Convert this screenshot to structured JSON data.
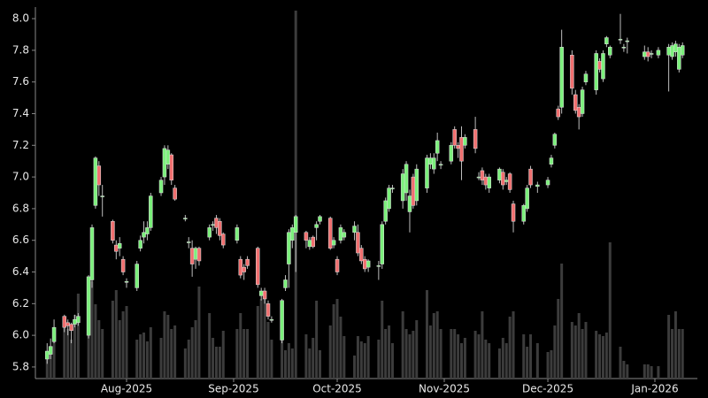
{
  "chart_data": {
    "type": "candlestick",
    "x": [
      8,
      9,
      10,
      13,
      14,
      15,
      16,
      17,
      20,
      21,
      22,
      23,
      24,
      27,
      28,
      29,
      30,
      31,
      34,
      35,
      36,
      37,
      38,
      41,
      42,
      43,
      44,
      45,
      48,
      49,
      50,
      51,
      52,
      55,
      56,
      57,
      58,
      59,
      63,
      64,
      65,
      66,
      69,
      70,
      71,
      72,
      73,
      76,
      77,
      78,
      79,
      80,
      83,
      84,
      85,
      86,
      87,
      90,
      91,
      92,
      93,
      94,
      97,
      98,
      99,
      100,
      101,
      104,
      105,
      106,
      107,
      108,
      111,
      112,
      113,
      114,
      115,
      118,
      119,
      120,
      121,
      122,
      125,
      126,
      127,
      128,
      129,
      132,
      133,
      134,
      135,
      136,
      139,
      140,
      141,
      142,
      143,
      146,
      147,
      148,
      150,
      153,
      154,
      155,
      156,
      157,
      160,
      161,
      162,
      163,
      164,
      167,
      168,
      169,
      170,
      171,
      174,
      175,
      176,
      181,
      182,
      183,
      185,
      188,
      189,
      190,
      191,
      192
    ],
    "open": [
      5.85,
      5.88,
      5.96,
      6.12,
      6.08,
      6.07,
      6.07,
      6.08,
      6.0,
      6.35,
      6.82,
      7.07,
      6.88,
      6.72,
      6.57,
      6.55,
      6.48,
      6.34,
      6.3,
      6.55,
      6.62,
      6.64,
      6.68,
      6.9,
      7.0,
      7.08,
      7.14,
      6.93,
      6.74,
      6.59,
      6.55,
      6.48,
      6.55,
      6.62,
      6.7,
      6.74,
      6.72,
      6.64,
      6.6,
      6.48,
      6.43,
      6.48,
      6.55,
      6.25,
      6.28,
      6.2,
      6.1,
      5.97,
      6.3,
      6.45,
      6.6,
      6.65,
      6.65,
      6.56,
      6.62,
      6.68,
      6.72,
      6.74,
      6.57,
      6.48,
      6.6,
      6.62,
      6.65,
      6.65,
      6.55,
      6.48,
      6.43,
      6.44,
      6.45,
      6.72,
      6.8,
      6.93,
      6.85,
      6.9,
      6.78,
      7.0,
      6.85,
      6.93,
      7.08,
      7.05,
      7.15,
      7.08,
      7.1,
      7.3,
      7.2,
      7.25,
      7.2,
      7.3,
      7.0,
      7.04,
      7.0,
      6.93,
      6.98,
      7.03,
      6.97,
      7.02,
      6.83,
      6.72,
      6.8,
      7.05,
      6.94,
      6.95,
      7.08,
      7.2,
      7.43,
      7.44,
      7.77,
      7.52,
      7.44,
      7.4,
      7.6,
      7.55,
      7.73,
      7.62,
      7.84,
      7.77,
      7.87,
      7.82,
      7.86,
      7.76,
      7.79,
      7.78,
      7.77,
      7.77,
      7.76,
      7.79,
      7.68,
      7.77
    ],
    "high": [
      5.95,
      5.98,
      6.1,
      6.13,
      6.1,
      6.08,
      6.13,
      6.14,
      6.38,
      6.7,
      7.13,
      7.1,
      6.95,
      6.73,
      6.6,
      6.62,
      6.5,
      6.36,
      6.47,
      6.63,
      6.72,
      6.72,
      6.9,
      7.0,
      7.2,
      7.2,
      7.15,
      6.95,
      6.76,
      6.62,
      6.6,
      6.56,
      6.56,
      6.7,
      6.72,
      6.76,
      6.74,
      6.65,
      6.7,
      6.5,
      6.45,
      6.5,
      6.56,
      6.3,
      6.3,
      6.22,
      6.12,
      6.23,
      6.38,
      6.67,
      6.7,
      6.76,
      6.66,
      6.62,
      6.63,
      6.72,
      6.76,
      6.75,
      6.62,
      6.5,
      6.7,
      6.67,
      6.72,
      6.7,
      6.57,
      6.5,
      6.48,
      6.47,
      6.72,
      6.87,
      6.95,
      6.95,
      7.05,
      7.1,
      6.92,
      7.02,
      7.08,
      7.14,
      7.15,
      7.15,
      7.28,
      7.1,
      7.22,
      7.32,
      7.22,
      7.32,
      7.27,
      7.38,
      7.03,
      7.06,
      7.02,
      7.02,
      7.06,
      7.05,
      7.0,
      7.03,
      6.85,
      6.83,
      6.95,
      7.07,
      6.97,
      7.0,
      7.14,
      7.28,
      7.45,
      7.93,
      7.8,
      7.55,
      7.46,
      7.57,
      7.67,
      7.8,
      7.75,
      7.8,
      7.89,
      7.83,
      8.03,
      7.84,
      7.88,
      7.83,
      7.82,
      7.8,
      7.82,
      7.84,
      7.85,
      7.86,
      7.84,
      7.85
    ],
    "low": [
      5.82,
      5.85,
      5.95,
      6.02,
      6.0,
      5.95,
      6.05,
      6.06,
      5.98,
      6.3,
      6.8,
      6.88,
      6.75,
      6.58,
      6.48,
      6.5,
      6.38,
      6.3,
      6.28,
      6.53,
      6.58,
      6.6,
      6.66,
      6.88,
      6.95,
      7.05,
      6.95,
      6.85,
      6.72,
      6.55,
      6.37,
      6.42,
      6.44,
      6.6,
      6.66,
      6.64,
      6.6,
      6.55,
      6.58,
      6.36,
      6.35,
      6.42,
      6.3,
      6.22,
      6.2,
      6.1,
      6.08,
      5.95,
      6.28,
      6.3,
      6.55,
      6.4,
      6.55,
      6.54,
      6.55,
      6.6,
      6.7,
      6.54,
      6.55,
      6.38,
      6.58,
      6.6,
      6.6,
      6.5,
      6.45,
      6.4,
      6.4,
      6.35,
      6.42,
      6.7,
      6.78,
      6.9,
      6.8,
      6.85,
      6.65,
      6.8,
      6.82,
      6.9,
      7.05,
      7.02,
      7.1,
      7.05,
      7.08,
      7.18,
      7.12,
      6.98,
      7.18,
      7.15,
      6.98,
      6.95,
      6.92,
      6.9,
      6.96,
      6.92,
      6.95,
      6.9,
      6.65,
      6.7,
      6.78,
      6.93,
      6.9,
      6.93,
      7.06,
      7.18,
      7.36,
      7.4,
      7.52,
      7.4,
      7.3,
      7.38,
      7.58,
      7.52,
      7.66,
      7.6,
      7.82,
      7.75,
      7.84,
      7.79,
      7.78,
      7.74,
      7.73,
      7.75,
      7.75,
      7.54,
      7.74,
      7.76,
      7.66,
      7.75
    ],
    "close": [
      5.9,
      5.93,
      6.05,
      6.05,
      6.06,
      6.03,
      6.1,
      6.12,
      6.37,
      6.68,
      7.12,
      6.95,
      6.88,
      6.6,
      6.53,
      6.58,
      6.4,
      6.34,
      6.45,
      6.6,
      6.65,
      6.68,
      6.88,
      6.98,
      7.18,
      7.17,
      6.98,
      6.86,
      6.74,
      6.59,
      6.45,
      6.55,
      6.47,
      6.68,
      6.7,
      6.68,
      6.63,
      6.57,
      6.68,
      6.38,
      6.4,
      6.44,
      6.32,
      6.28,
      6.23,
      6.12,
      6.1,
      6.22,
      6.35,
      6.65,
      6.68,
      6.75,
      6.6,
      6.6,
      6.56,
      6.7,
      6.75,
      6.55,
      6.6,
      6.4,
      6.68,
      6.65,
      6.69,
      6.52,
      6.47,
      6.42,
      6.47,
      6.44,
      6.7,
      6.85,
      6.93,
      6.93,
      7.02,
      7.08,
      6.88,
      6.82,
      7.05,
      7.12,
      7.12,
      7.12,
      7.23,
      7.08,
      7.2,
      7.2,
      7.18,
      7.1,
      7.25,
      7.18,
      7.0,
      6.98,
      6.95,
      7.0,
      7.05,
      6.95,
      6.98,
      6.92,
      6.72,
      6.82,
      6.93,
      6.95,
      6.95,
      6.98,
      7.12,
      7.27,
      7.38,
      7.82,
      7.56,
      7.42,
      7.38,
      7.55,
      7.65,
      7.78,
      7.68,
      7.78,
      7.88,
      7.82,
      7.87,
      7.82,
      7.86,
      7.79,
      7.76,
      7.78,
      7.8,
      7.82,
      7.83,
      7.84,
      7.82,
      7.83
    ],
    "volume": [
      12,
      16,
      22,
      30,
      28,
      22,
      36,
      48,
      38,
      55,
      42,
      33,
      28,
      44,
      50,
      33,
      38,
      41,
      22,
      25,
      26,
      21,
      29,
      23,
      38,
      36,
      28,
      30,
      17,
      22,
      29,
      33,
      52,
      37,
      23,
      18,
      18,
      27,
      28,
      37,
      28,
      28,
      41,
      45,
      48,
      32,
      22,
      26,
      16,
      20,
      17,
      208,
      25,
      17,
      23,
      44,
      16,
      30,
      42,
      45,
      35,
      24,
      13,
      24,
      21,
      20,
      24,
      22,
      44,
      28,
      30,
      20,
      38,
      28,
      25,
      27,
      33,
      50,
      30,
      37,
      38,
      28,
      28,
      28,
      25,
      20,
      23,
      27,
      25,
      38,
      22,
      20,
      17,
      23,
      20,
      35,
      38,
      25,
      18,
      25,
      20,
      15,
      16,
      30,
      45,
      65,
      32,
      30,
      37,
      28,
      32,
      27,
      25,
      24,
      26,
      77,
      18,
      10,
      8,
      8,
      8,
      7,
      7,
      36,
      28,
      38,
      28,
      28
    ],
    "up_color": "#7cf07c",
    "down_color": "#f07070",
    "volume_color": "#3c3c3c",
    "xlim": [
      4.6,
      196.3
    ],
    "xticks": [
      {
        "value": 31,
        "label": "Aug-2025"
      },
      {
        "value": 62,
        "label": "Sep-2025"
      },
      {
        "value": 92,
        "label": "Oct-2025"
      },
      {
        "value": 123,
        "label": "Nov-2025"
      },
      {
        "value": 153,
        "label": "Dec-2025"
      },
      {
        "value": 184,
        "label": "Jan-2026"
      }
    ],
    "ylim": [
      5.727,
      8.073
    ],
    "yticks": [
      5.8,
      {
        "value": 6.0,
        "label": "6.0"
      },
      6.2,
      6.4,
      6.6,
      6.8,
      {
        "value": 7.0,
        "label": "7.0"
      },
      7.2,
      7.4,
      7.6,
      7.8,
      {
        "value": 8.0,
        "label": "8.0"
      }
    ],
    "vlim": [
      0,
      210
    ]
  }
}
